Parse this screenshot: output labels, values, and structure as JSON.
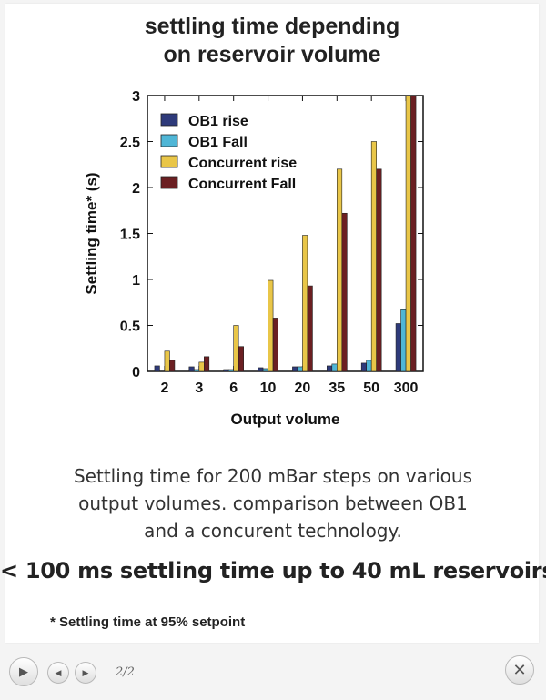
{
  "slide": {
    "title_line1": "settling time depending",
    "title_line2": "on reservoir volume",
    "caption_line1": "Settling time for 200 mBar steps on various",
    "caption_line2": "output volumes. comparison between OB1",
    "caption_line3": "and a concurent technology.",
    "headline": "< 100 ms settling time up to 40 mL reservoirs",
    "footnote": "* Settling time at 95% setpoint"
  },
  "controls": {
    "play_icon": "play-icon",
    "prev_icon": "chevron-left-icon",
    "next_icon": "chevron-right-icon",
    "close_icon": "close-icon",
    "counter": "2/2"
  },
  "chart_data": {
    "type": "bar",
    "xlabel": "Output volume",
    "ylabel": "Settling time* (s)",
    "ylim": [
      0,
      3
    ],
    "yticks": [
      0,
      0.5,
      1,
      1.5,
      2,
      2.5,
      3
    ],
    "ytick_labels": [
      "0",
      "0.5",
      "1",
      "1.5",
      "2",
      "2.5",
      "3"
    ],
    "categories": [
      "2",
      "3",
      "6",
      "10",
      "20",
      "35",
      "50",
      "300"
    ],
    "legend_position": "top-left",
    "series": [
      {
        "name": "OB1 rise",
        "color": "#2e3a7a",
        "values": [
          0.06,
          0.05,
          0.02,
          0.04,
          0.05,
          0.06,
          0.09,
          0.52
        ]
      },
      {
        "name": "OB1 Fall",
        "color": "#4fb6d6",
        "values": [
          0.0,
          0.02,
          0.02,
          0.03,
          0.05,
          0.08,
          0.12,
          0.67
        ]
      },
      {
        "name": "Concurrent rise",
        "color": "#e9c648",
        "values": [
          0.22,
          0.1,
          0.5,
          0.99,
          1.48,
          2.2,
          2.5,
          3.0
        ]
      },
      {
        "name": "Concurrent Fall",
        "color": "#6b1f22",
        "values": [
          0.12,
          0.16,
          0.27,
          0.58,
          0.93,
          1.72,
          2.2,
          3.0
        ]
      }
    ]
  }
}
